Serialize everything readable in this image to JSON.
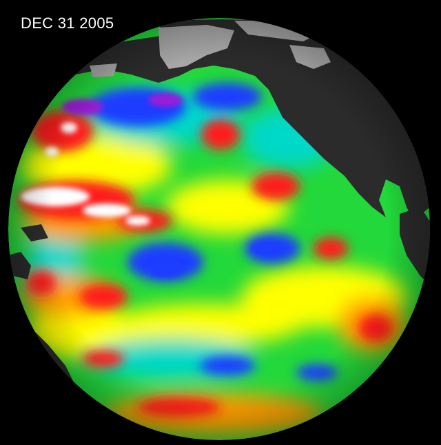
{
  "map": {
    "date_label": "DEC 31 2005",
    "background_color": "#000000",
    "land_color": "#2b2b2b",
    "ice_color": "#a8a8a8",
    "ocean_base_color": "#22d83a",
    "anomaly_palette": {
      "strong_high": "#ffffff",
      "high": "#ff1a1a",
      "moderate_high": "#ff9d00",
      "slight_high": "#ffff00",
      "neutral": "#22d83a",
      "slight_low": "#00d8c8",
      "low": "#1a3cff",
      "strong_low": "#9a1ad8"
    }
  }
}
